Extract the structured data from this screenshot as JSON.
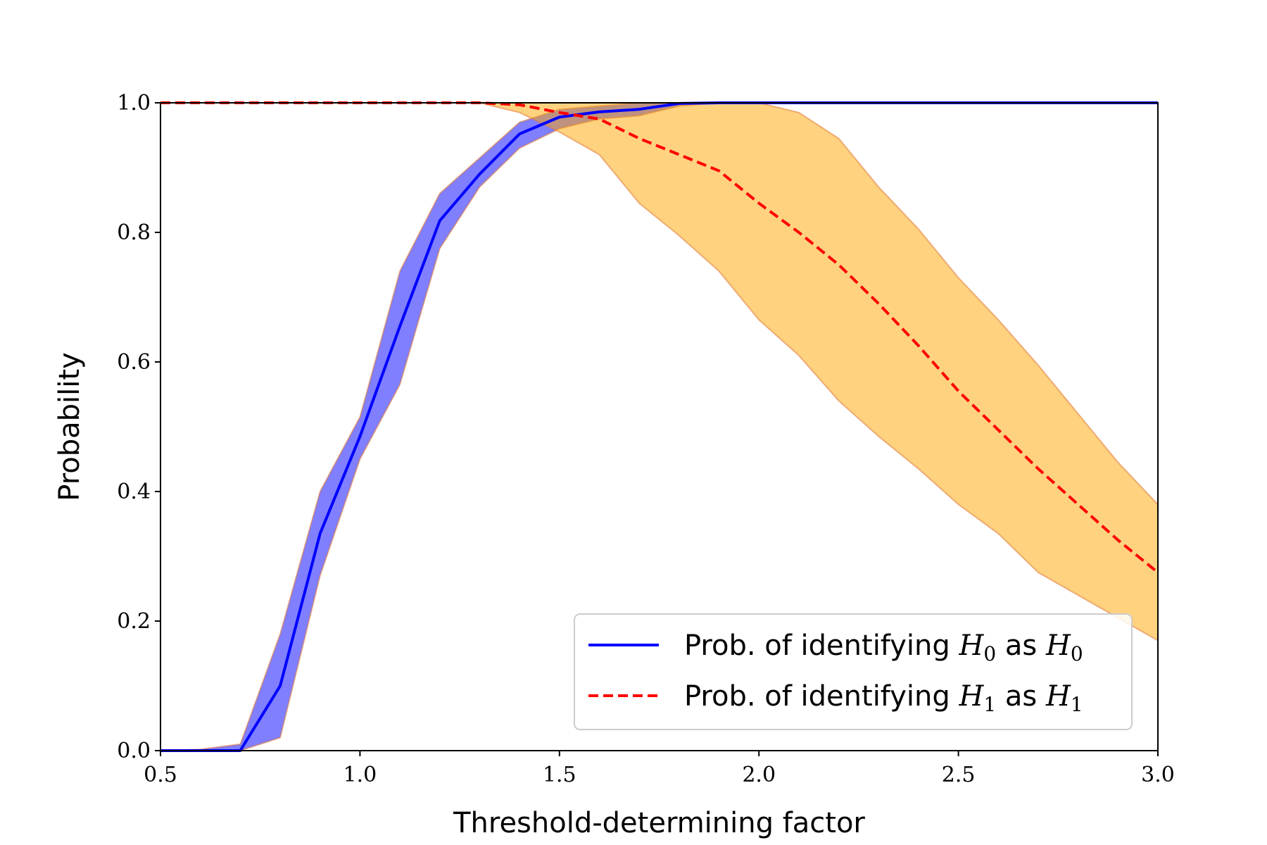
{
  "chart_data": {
    "type": "line",
    "xlabel": "Threshold-determining factor",
    "ylabel": "Probability",
    "xlim": [
      0.5,
      3.0
    ],
    "ylim": [
      0.0,
      1.0
    ],
    "xticks": [
      "0.5",
      "1.0",
      "1.5",
      "2.0",
      "2.5",
      "3.0"
    ],
    "yticks": [
      "0.0",
      "0.2",
      "0.4",
      "0.6",
      "0.8",
      "1.0"
    ],
    "grid": false,
    "legend_position": "lower-right",
    "x": [
      0.5,
      0.6,
      0.7,
      0.8,
      0.9,
      1.0,
      1.1,
      1.2,
      1.3,
      1.4,
      1.5,
      1.6,
      1.7,
      1.8,
      1.9,
      2.0,
      2.1,
      2.2,
      2.3,
      2.4,
      2.5,
      2.6,
      2.7,
      2.8,
      2.9,
      3.0
    ],
    "series": [
      {
        "legend": {
          "prefix": "Prob. of identifying ",
          "math1": "H",
          "sub1": "0",
          "middle": " as ",
          "math2": "H",
          "sub2": "0"
        },
        "color": "#0000ff",
        "band_color": "#0000ff",
        "line_style": "solid",
        "values": [
          0.0,
          0.0,
          0.0,
          0.1,
          0.335,
          0.485,
          0.655,
          0.818,
          0.89,
          0.952,
          0.978,
          0.986,
          0.99,
          0.999,
          1.0,
          1.0,
          1.0,
          1.0,
          1.0,
          1.0,
          1.0,
          1.0,
          1.0,
          1.0,
          1.0,
          1.0
        ],
        "lower": [
          0.0,
          0.0,
          0.0,
          0.02,
          0.27,
          0.45,
          0.565,
          0.775,
          0.87,
          0.93,
          0.96,
          0.975,
          0.98,
          0.995,
          1.0,
          1.0,
          1.0,
          1.0,
          1.0,
          1.0,
          1.0,
          1.0,
          1.0,
          1.0,
          1.0,
          1.0
        ],
        "upper": [
          0.0,
          0.002,
          0.01,
          0.18,
          0.4,
          0.515,
          0.74,
          0.86,
          0.915,
          0.97,
          0.99,
          0.995,
          1.0,
          1.0,
          1.0,
          1.0,
          1.0,
          1.0,
          1.0,
          1.0,
          1.0,
          1.0,
          1.0,
          1.0,
          1.0,
          1.0
        ]
      },
      {
        "legend": {
          "prefix": "Prob. of identifying ",
          "math1": "H",
          "sub1": "1",
          "middle": " as ",
          "math2": "H",
          "sub2": "1"
        },
        "color": "#ff0000",
        "band_color": "#ffa500",
        "line_style": "dashed",
        "values": [
          1.0,
          1.0,
          1.0,
          1.0,
          1.0,
          1.0,
          1.0,
          1.0,
          1.0,
          0.997,
          0.985,
          0.975,
          0.945,
          0.92,
          0.895,
          0.845,
          0.8,
          0.75,
          0.69,
          0.625,
          0.555,
          0.495,
          0.435,
          0.38,
          0.325,
          0.275
        ],
        "lower": [
          1.0,
          1.0,
          1.0,
          1.0,
          1.0,
          1.0,
          1.0,
          1.0,
          1.0,
          0.985,
          0.955,
          0.92,
          0.845,
          0.795,
          0.74,
          0.665,
          0.61,
          0.54,
          0.485,
          0.435,
          0.38,
          0.335,
          0.275,
          0.24,
          0.205,
          0.17
        ],
        "upper": [
          1.0,
          1.0,
          1.0,
          1.0,
          1.0,
          1.0,
          1.0,
          1.0,
          1.0,
          1.0,
          1.0,
          1.0,
          1.0,
          1.0,
          1.0,
          1.0,
          0.985,
          0.945,
          0.87,
          0.805,
          0.73,
          0.665,
          0.595,
          0.52,
          0.445,
          0.38
        ]
      }
    ]
  }
}
